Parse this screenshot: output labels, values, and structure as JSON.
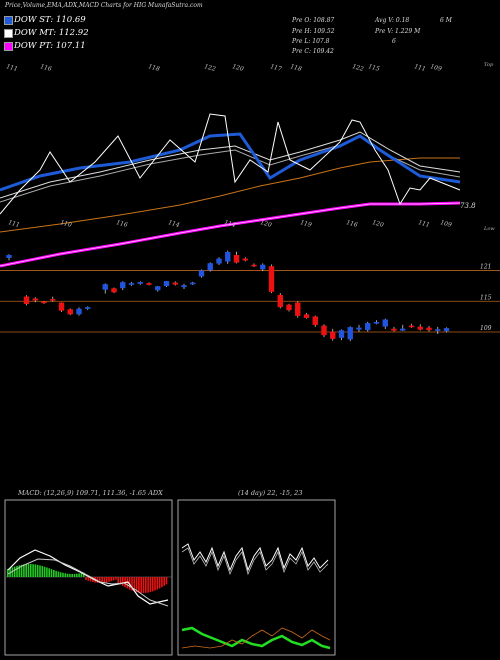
{
  "title": "Price,Volume,EMA,ADX,MACD Charts for HIG MunafaSutra.com",
  "legend": [
    {
      "label": "DOW ST: 110.69",
      "color": "#1e5bd8"
    },
    {
      "label": "DOW MT: 112.92",
      "color": "#ffffff"
    },
    {
      "label": "DOW PT: 107.11",
      "color": "#ff00ff"
    }
  ],
  "ohlc": {
    "pre_o": "Pre   O: 108.87",
    "pre_h": "Pre   H: 109.52",
    "pre_l": "Pre   L: 107.8",
    "pre_c": "Pre   C: 109.42",
    "avg_v": "Avg V: 0.18",
    "avg_m": "6   M",
    "pre_v": "Pre   V: 1.229 M",
    "six": "6"
  },
  "top_label": "Top",
  "low_label": "Low",
  "ema_value_label": "73.8",
  "price_levels": [
    {
      "label": "121",
      "value": 121
    },
    {
      "label": "115",
      "value": 115
    },
    {
      "label": "109",
      "value": 109
    }
  ],
  "top_numbers": [
    "111",
    "116",
    "118",
    "122",
    "120",
    "117",
    "118",
    "122",
    "115",
    "111",
    "109"
  ],
  "low_numbers": [
    "111",
    "110",
    "116",
    "114",
    "114",
    "120",
    "119",
    "116",
    "120",
    "111",
    "109"
  ],
  "macd_label": "MACD: (12,26,9) 109.71, 111.36, -1.65 ADX",
  "adx_label": "(14 day) 22, -15, 23",
  "colors": {
    "up": "#2255dd",
    "down": "#ee1111",
    "pt": "#ff00ff",
    "st": "#1e5bd8",
    "orange": "#c8741a"
  },
  "chart_data": {
    "type": "candlestick",
    "ylim": [
      104.5,
      126
    ],
    "candles": [
      {
        "o": 123.5,
        "h": 124.2,
        "l": 123.0,
        "c": 124.0
      },
      {
        "o": null,
        "h": null,
        "l": null,
        "c": null
      },
      {
        "o": 115.9,
        "h": 116.2,
        "l": 114.2,
        "c": 114.5
      },
      {
        "o": 115.5,
        "h": 115.8,
        "l": 114.8,
        "c": 115.2
      },
      {
        "o": 114.9,
        "h": 115.0,
        "l": 114.5,
        "c": 114.7
      },
      {
        "o": 115.4,
        "h": 115.9,
        "l": 114.9,
        "c": 115.3
      },
      {
        "o": 114.7,
        "h": 114.8,
        "l": 112.9,
        "c": 113.2
      },
      {
        "o": 113.4,
        "h": 113.6,
        "l": 112.3,
        "c": 112.5
      },
      {
        "o": 112.5,
        "h": 113.8,
        "l": 112.2,
        "c": 113.5
      },
      {
        "o": 113.7,
        "h": 114.0,
        "l": 113.3,
        "c": 113.8
      },
      {
        "o": null,
        "h": null,
        "l": null,
        "c": null
      },
      {
        "o": 117.3,
        "h": 118.5,
        "l": 116.5,
        "c": 118.3
      },
      {
        "o": 117.5,
        "h": 117.7,
        "l": 116.6,
        "c": 116.8
      },
      {
        "o": 117.6,
        "h": 118.9,
        "l": 117.2,
        "c": 118.7
      },
      {
        "o": 118.4,
        "h": 118.8,
        "l": 118.0,
        "c": 118.5
      },
      {
        "o": 118.6,
        "h": 118.9,
        "l": 118.2,
        "c": 118.7
      },
      {
        "o": 118.5,
        "h": 118.7,
        "l": 118.1,
        "c": 118.3
      },
      {
        "o": 117.2,
        "h": 118.0,
        "l": 116.9,
        "c": 117.9
      },
      {
        "o": 118.0,
        "h": 119.0,
        "l": 117.8,
        "c": 118.9
      },
      {
        "o": 118.6,
        "h": 118.9,
        "l": 118.1,
        "c": 118.3
      },
      {
        "o": 117.8,
        "h": 118.4,
        "l": 117.4,
        "c": 118.1
      },
      {
        "o": 118.5,
        "h": 118.8,
        "l": 118.2,
        "c": 118.6
      },
      {
        "o": 119.9,
        "h": 121.2,
        "l": 119.6,
        "c": 121.0
      },
      {
        "o": 121.1,
        "h": 122.6,
        "l": 120.8,
        "c": 122.4
      },
      {
        "o": 122.4,
        "h": 123.6,
        "l": 122.1,
        "c": 123.3
      },
      {
        "o": 122.8,
        "h": 124.9,
        "l": 122.3,
        "c": 124.6
      },
      {
        "o": 124.0,
        "h": 124.7,
        "l": 122.4,
        "c": 122.6
      },
      {
        "o": 123.3,
        "h": 123.6,
        "l": 122.8,
        "c": 123.0
      },
      {
        "o": 122.1,
        "h": 122.4,
        "l": 121.7,
        "c": 122.0
      },
      {
        "o": 121.3,
        "h": 122.4,
        "l": 120.9,
        "c": 122.1
      },
      {
        "o": 121.8,
        "h": 122.2,
        "l": 116.6,
        "c": 116.9
      },
      {
        "o": 116.2,
        "h": 116.6,
        "l": 113.6,
        "c": 113.9
      },
      {
        "o": 114.3,
        "h": 114.5,
        "l": 113.0,
        "c": 113.3
      },
      {
        "o": 114.7,
        "h": 115.0,
        "l": 111.8,
        "c": 112.2
      },
      {
        "o": 112.4,
        "h": 112.7,
        "l": 111.6,
        "c": 111.8
      },
      {
        "o": 112.0,
        "h": 112.2,
        "l": 110.0,
        "c": 110.4
      },
      {
        "o": 110.2,
        "h": 110.5,
        "l": 108.0,
        "c": 108.4
      },
      {
        "o": 109.0,
        "h": 109.6,
        "l": 107.3,
        "c": 107.7
      },
      {
        "o": 107.9,
        "h": 109.5,
        "l": 107.4,
        "c": 109.3
      },
      {
        "o": 107.6,
        "h": 110.1,
        "l": 107.2,
        "c": 109.9
      },
      {
        "o": 109.5,
        "h": 110.4,
        "l": 109.0,
        "c": 109.8
      },
      {
        "o": 109.4,
        "h": 111.0,
        "l": 109.1,
        "c": 110.7
      },
      {
        "o": 110.8,
        "h": 111.3,
        "l": 110.5,
        "c": 110.9
      },
      {
        "o": 110.1,
        "h": 111.6,
        "l": 109.6,
        "c": 111.4
      },
      {
        "o": 109.6,
        "h": 110.0,
        "l": 109.1,
        "c": 109.3
      },
      {
        "o": 109.3,
        "h": 110.4,
        "l": 109.2,
        "c": 109.6
      },
      {
        "o": 110.2,
        "h": 110.6,
        "l": 109.8,
        "c": 110.1
      },
      {
        "o": 110.0,
        "h": 110.5,
        "l": 109.3,
        "c": 109.5
      },
      {
        "o": 109.8,
        "h": 110.2,
        "l": 109.1,
        "c": 109.4
      },
      {
        "o": 109.3,
        "h": 110.0,
        "l": 108.6,
        "c": 109.5
      },
      {
        "o": 109.2,
        "h": 109.9,
        "l": 108.9,
        "c": 109.7
      }
    ]
  }
}
